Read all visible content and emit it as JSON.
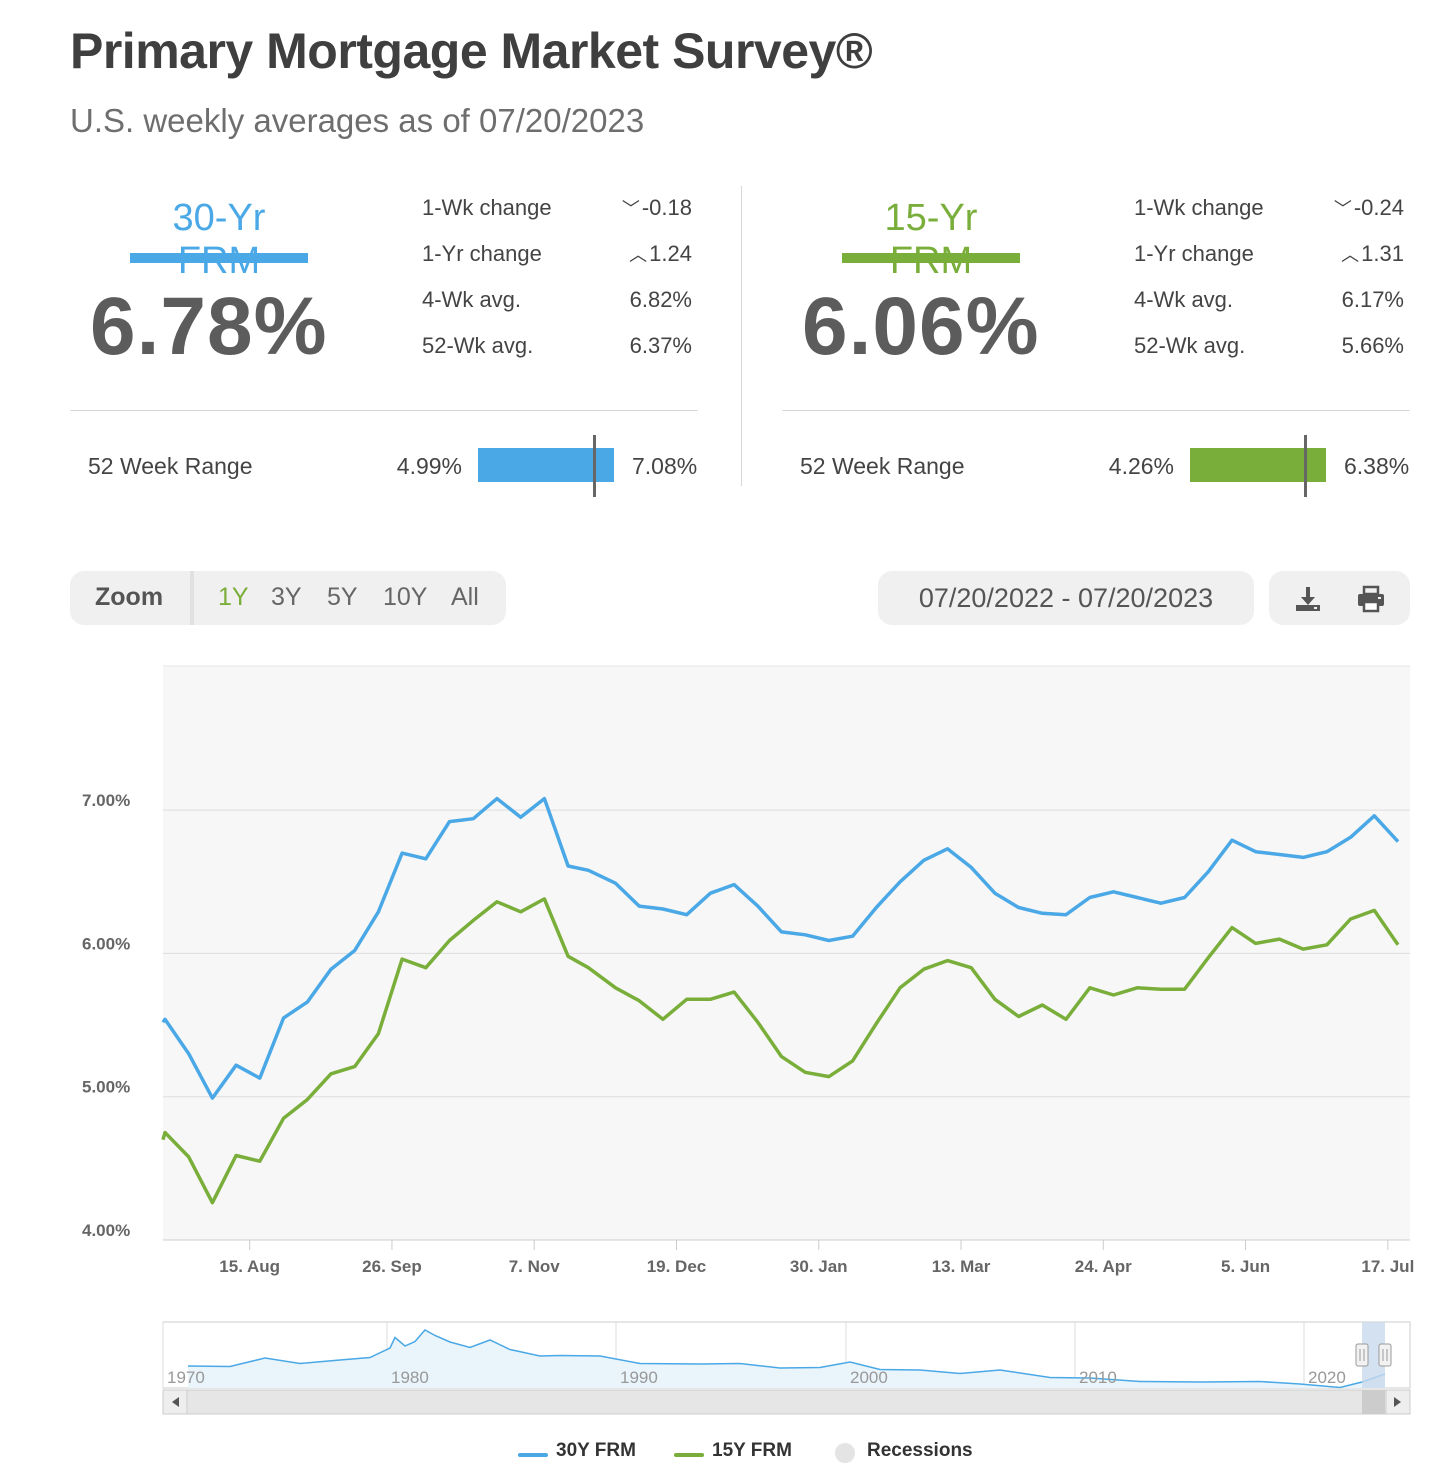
{
  "header": {
    "title": "Primary Mortgage Market Survey®",
    "subtitle": "U.S. weekly averages as of 07/20/2023"
  },
  "rates": [
    {
      "name": "30-Yr FRM",
      "color": "#4aa8e6",
      "value": "6.78%",
      "stats": [
        {
          "label": "1-Wk change",
          "arrow": "down",
          "value": "-0.18"
        },
        {
          "label": "1-Yr change",
          "arrow": "up",
          "value": "1.24"
        },
        {
          "label": "4-Wk avg.",
          "arrow": "",
          "value": "6.82%"
        },
        {
          "label": "52-Wk avg.",
          "arrow": "",
          "value": "6.37%"
        }
      ],
      "range_label": "52 Week Range",
      "range_low": "4.99%",
      "range_high": "7.08%",
      "range_low_num": 4.99,
      "range_high_num": 7.08,
      "current_num": 6.78
    },
    {
      "name": "15-Yr FRM",
      "color": "#7aae3a",
      "value": "6.06%",
      "stats": [
        {
          "label": "1-Wk change",
          "arrow": "down",
          "value": "-0.24"
        },
        {
          "label": "1-Yr change",
          "arrow": "up",
          "value": "1.31"
        },
        {
          "label": "4-Wk avg.",
          "arrow": "",
          "value": "6.17%"
        },
        {
          "label": "52-Wk avg.",
          "arrow": "",
          "value": "5.66%"
        }
      ],
      "range_label": "52 Week Range",
      "range_low": "4.26%",
      "range_high": "6.38%",
      "range_low_num": 4.26,
      "range_high_num": 6.38,
      "current_num": 6.06
    }
  ],
  "zoom": {
    "label": "Zoom",
    "options": [
      "1Y",
      "3Y",
      "5Y",
      "10Y",
      "All"
    ],
    "active": "1Y"
  },
  "date_range": "07/20/2022 - 07/20/2023",
  "tools": {
    "download_icon": "download-icon",
    "print_icon": "print-icon"
  },
  "chart_data": {
    "type": "line",
    "title": "",
    "xlabel": "",
    "ylabel": "",
    "ylim": [
      4.0,
      8.0
    ],
    "yticks": [
      "4.00%",
      "5.00%",
      "6.00%",
      "7.00%"
    ],
    "xticks": [
      "15. Aug",
      "26. Sep",
      "7. Nov",
      "19. Dec",
      "30. Jan",
      "13. Mar",
      "24. Apr",
      "5. Jun",
      "17. Jul"
    ],
    "grid": true,
    "legend_position": "bottom-center",
    "x": [
      "2022-07-21",
      "2022-07-28",
      "2022-08-04",
      "2022-08-11",
      "2022-08-18",
      "2022-08-25",
      "2022-09-01",
      "2022-09-08",
      "2022-09-15",
      "2022-09-22",
      "2022-09-29",
      "2022-10-06",
      "2022-10-13",
      "2022-10-20",
      "2022-10-27",
      "2022-11-03",
      "2022-11-10",
      "2022-11-17",
      "2022-11-23",
      "2022-12-01",
      "2022-12-08",
      "2022-12-15",
      "2022-12-22",
      "2022-12-29",
      "2023-01-05",
      "2023-01-12",
      "2023-01-19",
      "2023-01-26",
      "2023-02-02",
      "2023-02-09",
      "2023-02-16",
      "2023-02-23",
      "2023-03-02",
      "2023-03-09",
      "2023-03-16",
      "2023-03-23",
      "2023-03-30",
      "2023-04-06",
      "2023-04-13",
      "2023-04-20",
      "2023-04-27",
      "2023-05-04",
      "2023-05-11",
      "2023-05-18",
      "2023-05-25",
      "2023-06-01",
      "2023-06-08",
      "2023-06-15",
      "2023-06-22",
      "2023-06-29",
      "2023-07-06",
      "2023-07-13",
      "2023-07-20"
    ],
    "series": [
      {
        "name": "30Y FRM",
        "color": "#4aa8e6",
        "values": [
          5.54,
          5.3,
          4.99,
          5.22,
          5.13,
          5.55,
          5.66,
          5.89,
          6.02,
          6.29,
          6.7,
          6.66,
          6.92,
          6.94,
          7.08,
          6.95,
          7.08,
          6.61,
          6.58,
          6.49,
          6.33,
          6.31,
          6.27,
          6.42,
          6.48,
          6.33,
          6.15,
          6.13,
          6.09,
          6.12,
          6.32,
          6.5,
          6.65,
          6.73,
          6.6,
          6.42,
          6.32,
          6.28,
          6.27,
          6.39,
          6.43,
          6.39,
          6.35,
          6.39,
          6.57,
          6.79,
          6.71,
          6.69,
          6.67,
          6.71,
          6.81,
          6.96,
          6.78
        ]
      },
      {
        "name": "15Y FRM",
        "color": "#7aae3a",
        "values": [
          4.75,
          4.58,
          4.26,
          4.59,
          4.55,
          4.85,
          4.98,
          5.16,
          5.21,
          5.44,
          5.96,
          5.9,
          6.09,
          6.23,
          6.36,
          6.29,
          6.38,
          5.98,
          5.9,
          5.76,
          5.67,
          5.54,
          5.68,
          5.68,
          5.73,
          5.52,
          5.28,
          5.17,
          5.14,
          5.25,
          5.51,
          5.76,
          5.89,
          5.95,
          5.9,
          5.68,
          5.56,
          5.64,
          5.54,
          5.76,
          5.71,
          5.76,
          5.75,
          5.75,
          5.97,
          6.18,
          6.07,
          6.1,
          6.03,
          6.06,
          6.24,
          6.3,
          6.06
        ]
      }
    ]
  },
  "navigator": {
    "labels": [
      "1970",
      "1980",
      "1990",
      "2000",
      "2010",
      "2020"
    ]
  },
  "legend": {
    "items": [
      {
        "label": "30Y FRM",
        "color": "#4aa8e6"
      },
      {
        "label": "15Y FRM",
        "color": "#7aae3a"
      },
      {
        "label": "Recessions",
        "color": "#e4e4e4"
      }
    ]
  }
}
